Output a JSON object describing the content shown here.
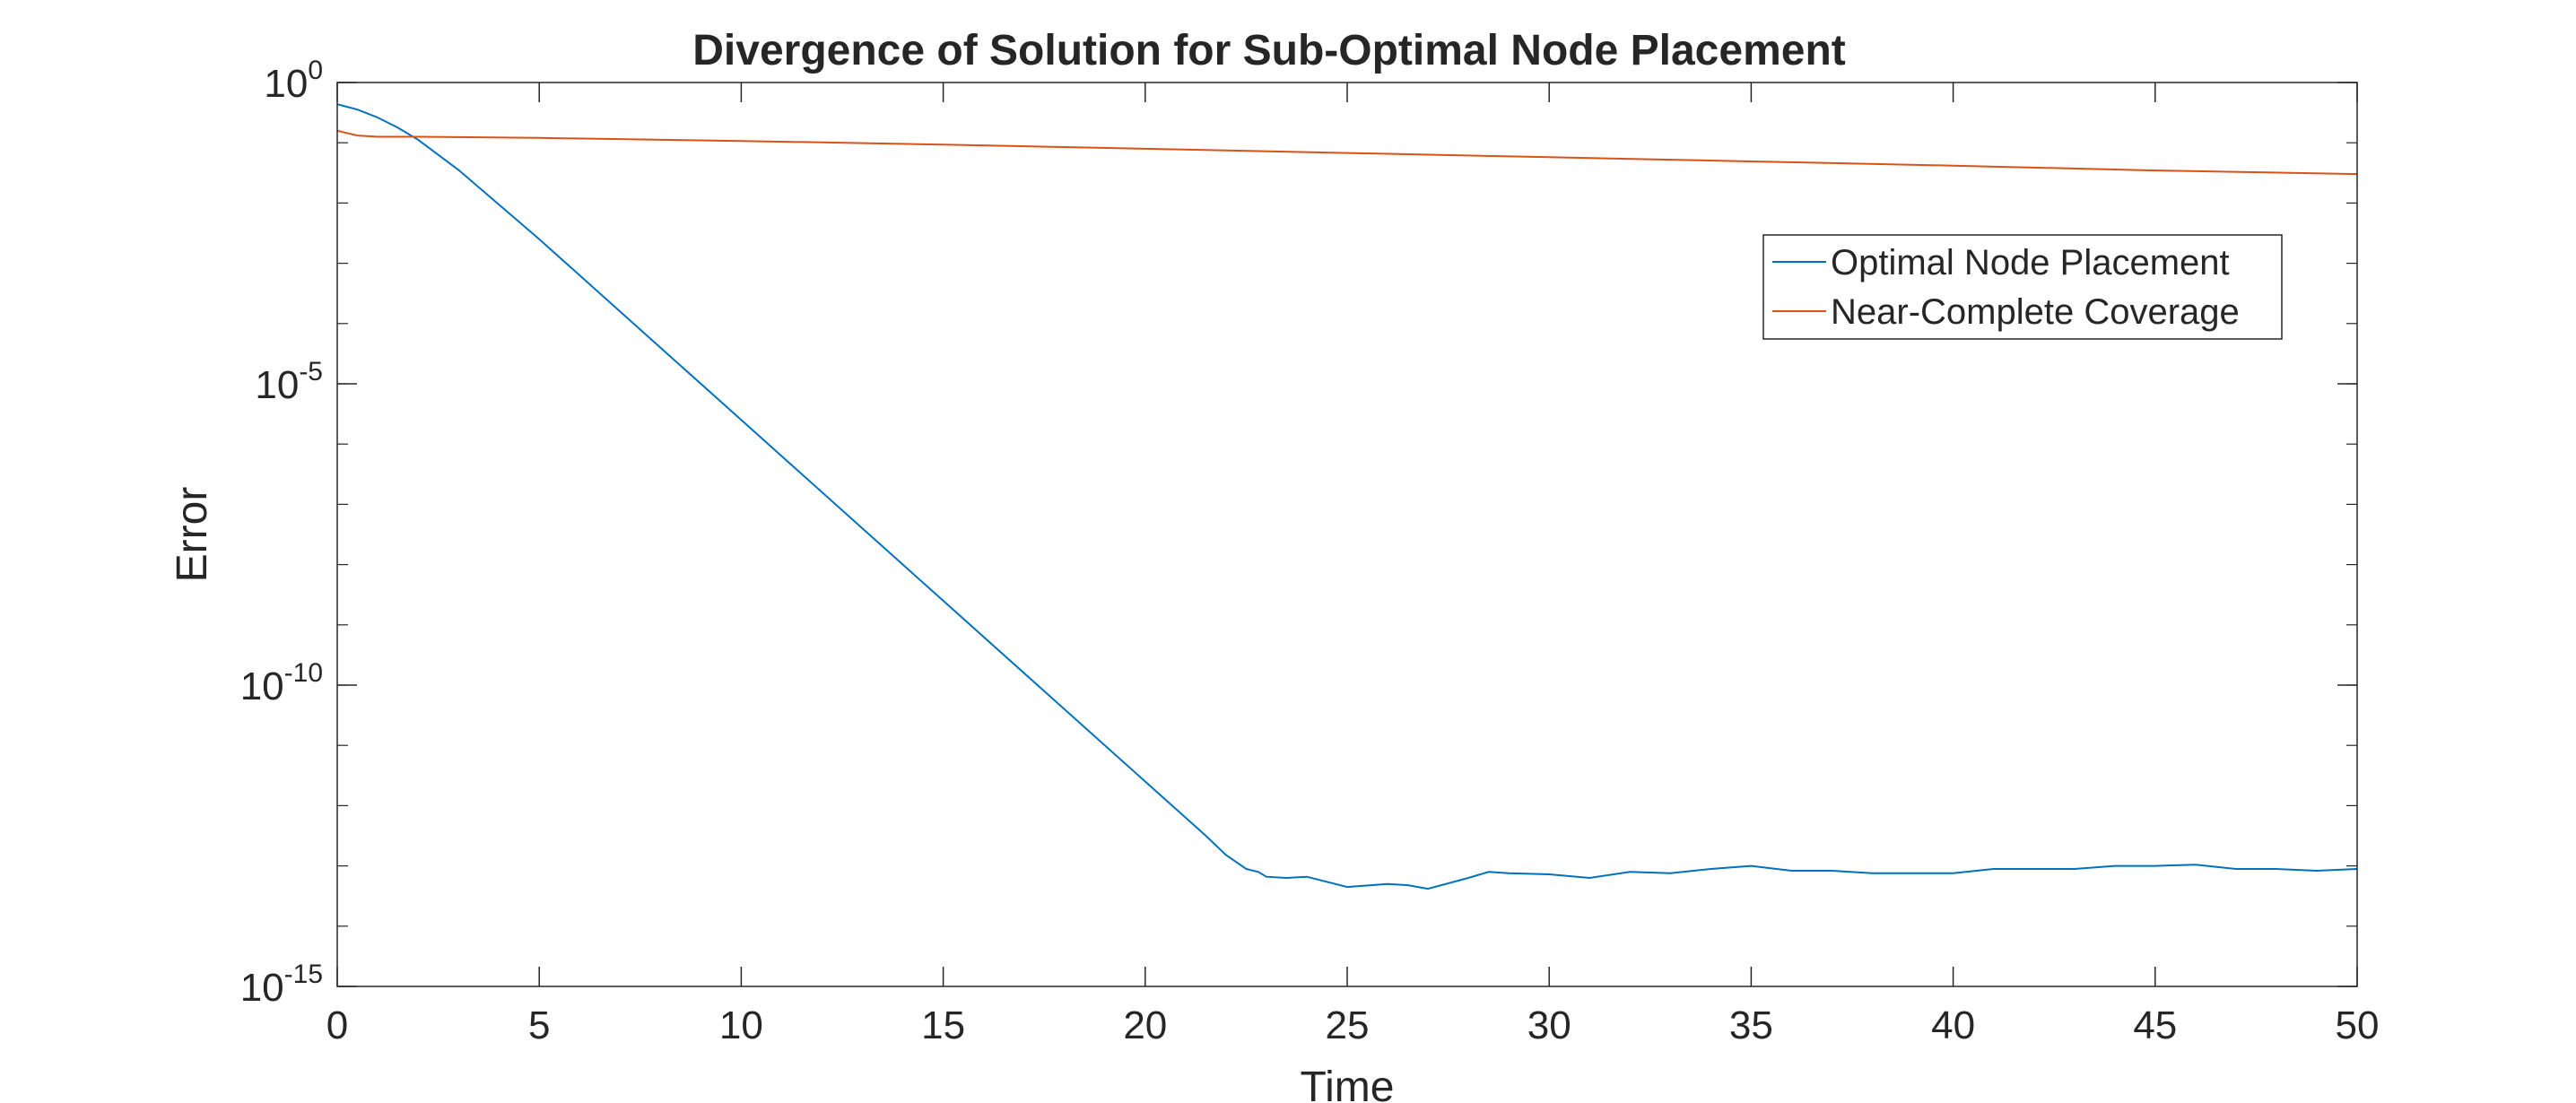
{
  "chart_data": {
    "type": "line",
    "title": "Divergence of Solution for Sub-Optimal Node Placement",
    "xlabel": "Time",
    "ylabel": "Error",
    "xlim": [
      0,
      50
    ],
    "ylim_log10": [
      -15,
      0
    ],
    "y_scale": "log",
    "grid": false,
    "legend_position": "top-right",
    "x_ticks": [
      0,
      5,
      10,
      15,
      20,
      25,
      30,
      35,
      40,
      45,
      50
    ],
    "y_ticks": [
      {
        "base": "10",
        "exp": "-15"
      },
      {
        "base": "10",
        "exp": "-10"
      },
      {
        "base": "10",
        "exp": "-5"
      },
      {
        "base": "10",
        "exp": "0"
      }
    ],
    "series": [
      {
        "name": "Optimal Node Placement",
        "color": "#0072BD",
        "x": [
          0,
          0.5,
          1,
          1.5,
          2,
          3,
          5,
          10,
          15,
          20,
          21,
          21.5,
          22,
          22.5,
          22.8,
          23,
          23.5,
          24,
          25,
          26,
          26.5,
          27,
          28,
          28.5,
          29,
          30,
          31,
          32,
          33,
          34,
          35,
          36,
          37,
          38,
          39,
          40,
          41,
          42,
          43,
          44,
          45,
          46,
          47,
          48,
          49,
          50
        ],
        "log10_values": [
          -0.36,
          -0.45,
          -0.58,
          -0.75,
          -0.95,
          -1.45,
          -2.6,
          -5.6,
          -8.6,
          -11.6,
          -12.2,
          -12.5,
          -12.82,
          -13.05,
          -13.1,
          -13.18,
          -13.2,
          -13.18,
          -13.35,
          -13.3,
          -13.32,
          -13.38,
          -13.2,
          -13.1,
          -13.12,
          -13.14,
          -13.2,
          -13.1,
          -13.12,
          -13.05,
          -13.0,
          -13.08,
          -13.08,
          -13.12,
          -13.12,
          -13.12,
          -13.05,
          -13.05,
          -13.05,
          -13.0,
          -13.0,
          -12.98,
          -13.05,
          -13.05,
          -13.08,
          -13.05
        ]
      },
      {
        "name": "Near-Complete Coverage",
        "color": "#D95319",
        "x": [
          0,
          0.5,
          1,
          2,
          5,
          10,
          15,
          20,
          25,
          30,
          35,
          40,
          45,
          50
        ],
        "log10_values": [
          -0.8,
          -0.88,
          -0.9,
          -0.9,
          -0.92,
          -0.97,
          -1.03,
          -1.1,
          -1.17,
          -1.24,
          -1.31,
          -1.38,
          -1.46,
          -1.52
        ]
      }
    ]
  }
}
